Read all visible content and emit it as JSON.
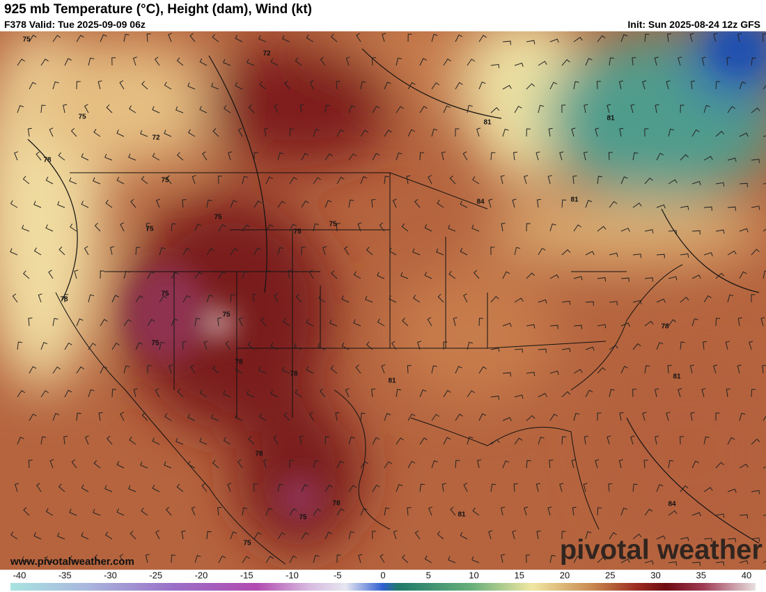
{
  "header": {
    "title": "925 mb Temperature (°C), Height (dam), Wind (kt)",
    "valid": "F378 Valid: Tue 2025-09-09 06z",
    "init": "Init: Sun 2025-08-24 12z GFS"
  },
  "contour_labels": [
    "75",
    "72",
    "75",
    "72",
    "78",
    "75",
    "75",
    "75",
    "75",
    "75",
    "81",
    "81",
    "84",
    "81",
    "78",
    "75",
    "75",
    "75",
    "78",
    "78",
    "81",
    "78",
    "81",
    "78",
    "78",
    "75",
    "81",
    "84",
    "75"
  ],
  "watermark": {
    "url": "www.pivotalweather.com",
    "brand": "pivotal weather"
  },
  "colorbar": {
    "ticks": [
      -40,
      -35,
      -30,
      -25,
      -20,
      -15,
      -10,
      -5,
      0,
      5,
      10,
      15,
      20,
      25,
      30,
      35,
      40
    ]
  }
}
